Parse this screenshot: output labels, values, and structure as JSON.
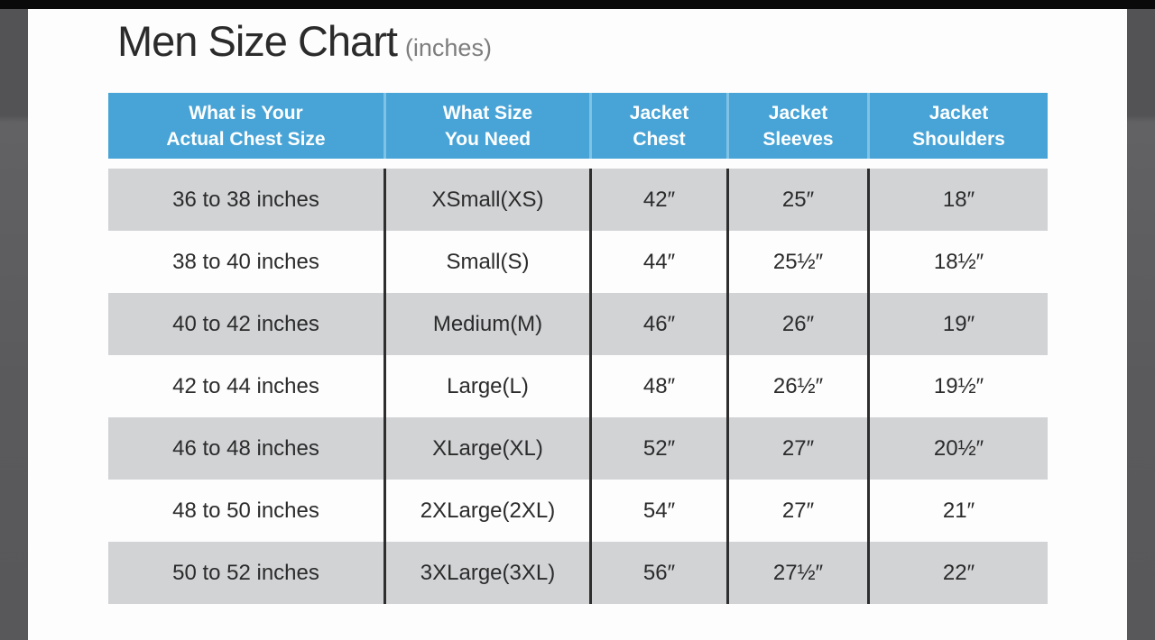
{
  "page": {
    "title": "Men Size Chart",
    "title_suffix": "(inches)"
  },
  "colors": {
    "header_bg": "#48a4d6",
    "header_text": "#ffffff",
    "header_divider": "#7ec2e6",
    "row_alt_bg": "#d2d3d5",
    "row_bg": "#fdfdfe",
    "body_divider": "#2e2e2e",
    "body_text": "#2b2b2b",
    "letterbox_top": "#0a0a0a",
    "letterbox_side": "#58585a"
  },
  "table": {
    "headers": [
      {
        "line1": "What is Your",
        "line2": "Actual Chest Size"
      },
      {
        "line1": "What Size",
        "line2": "You Need"
      },
      {
        "line1": "Jacket",
        "line2": "Chest"
      },
      {
        "line1": "Jacket",
        "line2": "Sleeves"
      },
      {
        "line1": "Jacket",
        "line2": "Shoulders"
      }
    ],
    "rows": [
      {
        "cells": [
          "36 to 38 inches",
          "XSmall(XS)",
          "42″",
          "25″",
          "18″"
        ]
      },
      {
        "cells": [
          "38 to 40 inches",
          "Small(S)",
          "44″",
          "25½″",
          "18½″"
        ]
      },
      {
        "cells": [
          "40 to 42 inches",
          "Medium(M)",
          "46″",
          "26″",
          "19″"
        ]
      },
      {
        "cells": [
          "42 to 44 inches",
          "Large(L)",
          "48″",
          "26½″",
          "19½″"
        ]
      },
      {
        "cells": [
          "46 to 48 inches",
          "XLarge(XL)",
          "52″",
          "27″",
          "20½″"
        ]
      },
      {
        "cells": [
          "48 to 50 inches",
          "2XLarge(2XL)",
          "54″",
          "27″",
          "21″"
        ]
      },
      {
        "cells": [
          "50 to 52 inches",
          "3XLarge(3XL)",
          "56″",
          "27½″",
          "22″"
        ]
      }
    ]
  },
  "chart_data": {
    "type": "table",
    "title": "Men Size Chart (inches)",
    "columns": [
      "What is Your Actual Chest Size",
      "What Size You Need",
      "Jacket Chest",
      "Jacket Sleeves",
      "Jacket Shoulders"
    ],
    "rows": [
      [
        "36 to 38 inches",
        "XSmall(XS)",
        "42″",
        "25″",
        "18″"
      ],
      [
        "38 to 40 inches",
        "Small(S)",
        "44″",
        "25½″",
        "18½″"
      ],
      [
        "40 to 42 inches",
        "Medium(M)",
        "46″",
        "26″",
        "19″"
      ],
      [
        "42 to 44 inches",
        "Large(L)",
        "48″",
        "26½″",
        "19½″"
      ],
      [
        "46 to 48 inches",
        "XLarge(XL)",
        "52″",
        "27″",
        "20½″"
      ],
      [
        "48 to 50 inches",
        "2XLarge(2XL)",
        "54″",
        "27″",
        "21″"
      ],
      [
        "50 to 52 inches",
        "3XLarge(3XL)",
        "56″",
        "27½″",
        "22″"
      ]
    ],
    "layout": {
      "header_bg": "#48a4d6",
      "zebra_striping": true,
      "first_row_shade": "gray"
    }
  }
}
